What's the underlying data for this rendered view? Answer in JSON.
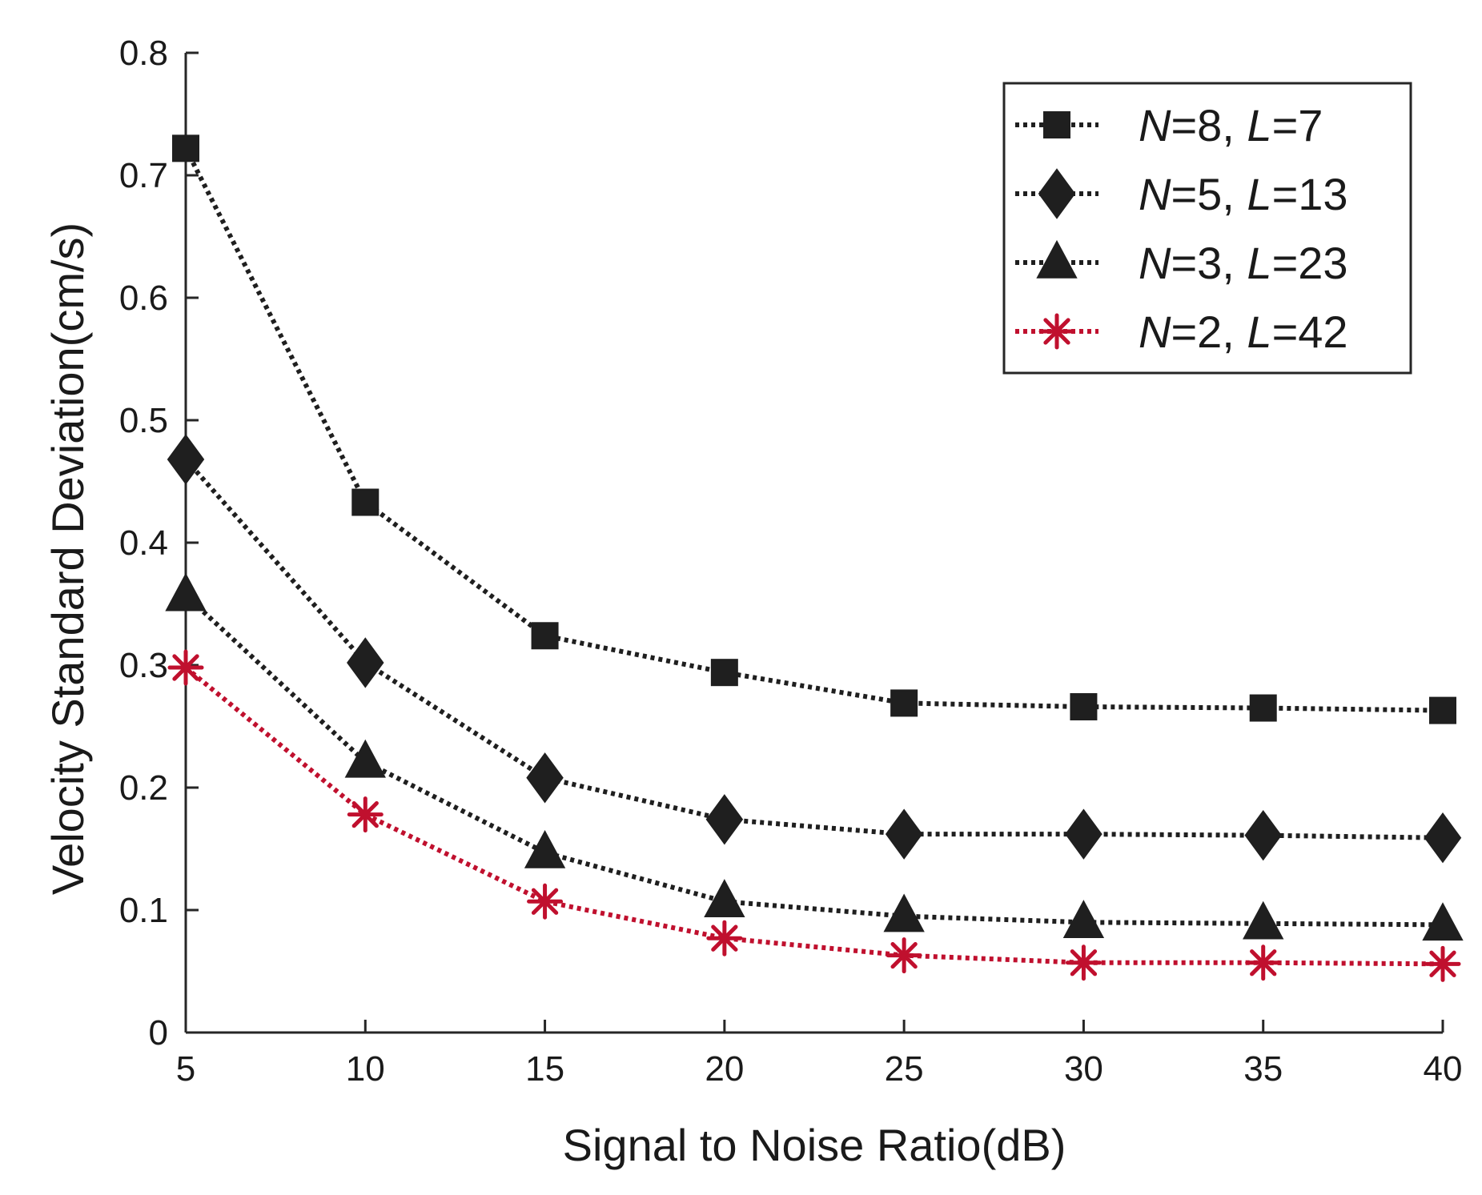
{
  "chart_data": {
    "type": "line",
    "title": "",
    "xlabel": "Signal to Noise Ratio(dB)",
    "ylabel": "Velocity Standard Deviation(cm/s)",
    "xlim": [
      5,
      40
    ],
    "ylim": [
      0,
      0.8
    ],
    "x_ticks": [
      5,
      10,
      15,
      20,
      25,
      30,
      35,
      40
    ],
    "x_tick_labels": [
      "5",
      "10",
      "15",
      "20",
      "25",
      "30",
      "35",
      "40"
    ],
    "y_ticks": [
      0,
      0.1,
      0.2,
      0.3,
      0.4,
      0.5,
      0.6,
      0.7,
      0.8
    ],
    "y_tick_labels": [
      "0",
      "0.1",
      "0.2",
      "0.3",
      "0.4",
      "0.5",
      "0.6",
      "0.7",
      "0.8"
    ],
    "grid": false,
    "legend_position": "top-right",
    "x": [
      5,
      10,
      15,
      20,
      25,
      30,
      35,
      40
    ],
    "series": [
      {
        "name": "N=8, L=7",
        "label_parts": [
          {
            "text": "N",
            "italic": true
          },
          {
            "text": "=8, ",
            "italic": false
          },
          {
            "text": "L",
            "italic": true
          },
          {
            "text": "=7",
            "italic": false
          }
        ],
        "marker": "square",
        "color": "#1f1f1f",
        "values": [
          0.722,
          0.433,
          0.324,
          0.294,
          0.269,
          0.266,
          0.265,
          0.263
        ]
      },
      {
        "name": "N=5, L=13",
        "label_parts": [
          {
            "text": "N",
            "italic": true
          },
          {
            "text": "=5, ",
            "italic": false
          },
          {
            "text": "L",
            "italic": true
          },
          {
            "text": "=13",
            "italic": false
          }
        ],
        "marker": "diamond",
        "color": "#1f1f1f",
        "values": [
          0.468,
          0.302,
          0.208,
          0.174,
          0.162,
          0.162,
          0.161,
          0.159
        ]
      },
      {
        "name": "N=3, L=23",
        "label_parts": [
          {
            "text": "N",
            "italic": true
          },
          {
            "text": "=3, ",
            "italic": false
          },
          {
            "text": "L",
            "italic": true
          },
          {
            "text": "=23",
            "italic": false
          }
        ],
        "marker": "triangle",
        "color": "#1f1f1f",
        "values": [
          0.357,
          0.221,
          0.147,
          0.107,
          0.095,
          0.09,
          0.089,
          0.088
        ]
      },
      {
        "name": "N=2, L=42",
        "label_parts": [
          {
            "text": "N",
            "italic": true
          },
          {
            "text": "=2, ",
            "italic": false
          },
          {
            "text": "L",
            "italic": true
          },
          {
            "text": "=42",
            "italic": false
          }
        ],
        "marker": "asterisk",
        "color": "#c0102e",
        "values": [
          0.298,
          0.178,
          0.107,
          0.077,
          0.063,
          0.057,
          0.057,
          0.056
        ]
      }
    ]
  }
}
